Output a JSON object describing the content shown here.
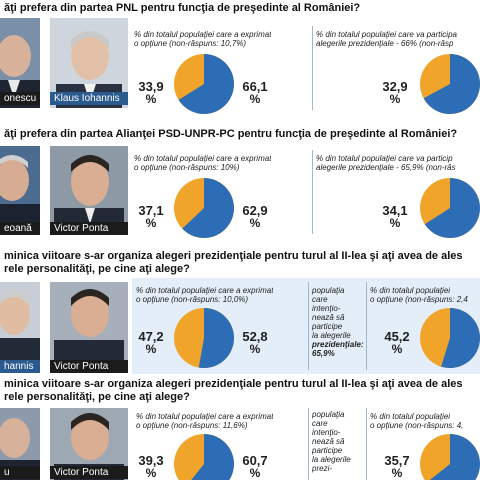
{
  "rows": [
    {
      "question": "ăţi prefera din partea PNL pentru funcţia de preşedinte al României?",
      "left_name": "onescu",
      "right_name": "Klaus Iohannis",
      "panel1_caption_a": "% din totalul populaţiei care a exprimat",
      "panel1_caption_b": "o opţiune (non-răspuns: 10,7%)",
      "panel1_left_value": "33,9",
      "panel1_right_value": "66,1",
      "panel1_fraction": 0.661,
      "panel2_caption_a": "% din totalul populaţiei care va participa",
      "panel2_caption_b": "alegerile prezidenţiale - 66% (non-răsp",
      "panel2_value": "32,9",
      "panel2_fraction": 0.671
    },
    {
      "question": "ăţi prefera din partea Alianţei PSD-UNPR-PC pentru funcţia de preşedinte al României?",
      "left_name": "eoană",
      "right_name": "Victor Ponta",
      "panel1_caption_a": "% din totalul populaţiei care a exprimat",
      "panel1_caption_b": "o opţiune (non-răspuns: 10%)",
      "panel1_left_value": "37,1",
      "panel1_right_value": "62,9",
      "panel1_fraction": 0.629,
      "panel2_caption_a": "% din totalul populaţiei care va particip",
      "panel2_caption_b": "alegerile prezidenţiale - 65,9% (non-răs",
      "panel2_value": "34,1",
      "panel2_fraction": 0.659
    },
    {
      "question": "minica viitoare s-ar organiza alegeri prezidenţiale pentru turul al II-lea şi aţi avea de ales",
      "question2": "rele personalităţi, pe cine aţi alege?",
      "left_name": "hannis",
      "right_name": "Victor Ponta",
      "panel1_caption_a": "% din totalul populaţiei care a exprimat",
      "panel1_caption_b": "o opţiune (non-răspuns: 10,0%)",
      "panel1_left_value": "47,2",
      "panel1_right_value": "52,8",
      "panel1_fraction": 0.528,
      "side_lines": [
        "populaţia",
        "care",
        "intenţio-",
        "nează să",
        "participe",
        "la alegerile",
        "prezidenţiale: 65,9%"
      ],
      "panel2_caption_a": "% din totalul populaţiei",
      "panel2_caption_b": "o opţiune (non-răspuns: 2,4",
      "panel2_value": "45,2",
      "panel2_fraction": 0.548
    },
    {
      "question": "minica viitoare s-ar organiza alegeri prezidenţiale pentru turul al II-lea şi aţi avea de ales",
      "question2": "rele personalităţi, pe cine aţi alege?",
      "left_name": "u",
      "right_name": "Victor Ponta",
      "panel1_caption_a": "% din totalul populaţiei care a exprimat",
      "panel1_caption_b": "o opţiune (non-răspuns: 11,6%)",
      "panel1_left_value": "39,3",
      "panel1_right_value": "60,7",
      "panel1_fraction": 0.607,
      "side_lines": [
        "populaţia",
        "care",
        "intenţio-",
        "nează să",
        "participe",
        "la alegerile",
        "prezi-"
      ],
      "panel2_caption_a": "% din totalul populaţiei",
      "panel2_caption_b": "o opţiune (non-răspuns: 4,",
      "panel2_value": "35,7",
      "panel2_fraction": 0.643
    }
  ],
  "percent_sign": "%",
  "colors": {
    "blue_slice": "#2d6db5",
    "orange_slice": "#f0a52a",
    "panel_blue": "#e3eef8",
    "name_bar": "#2b5a8f"
  }
}
